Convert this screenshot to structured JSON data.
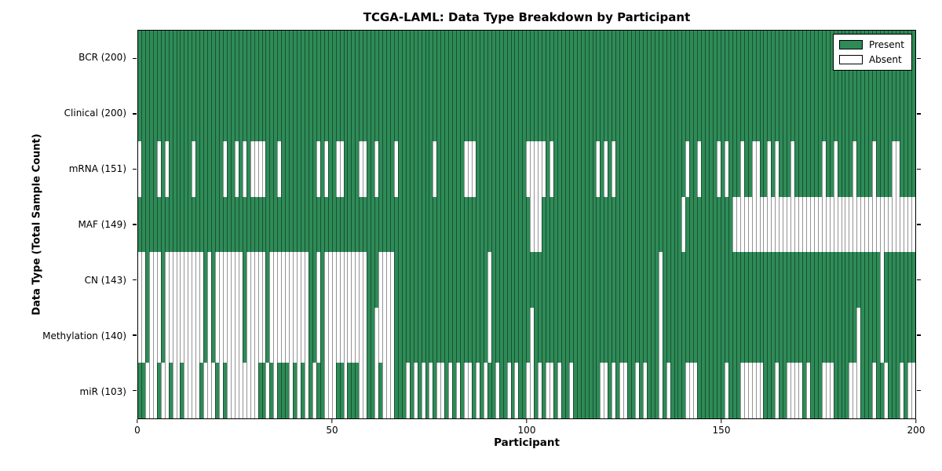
{
  "chart_data": {
    "type": "heatmap",
    "title": "TCGA-LAML: Data Type Breakdown by Participant",
    "xlabel": "Participant",
    "ylabel": "Data Type (Total Sample Count)",
    "x_ticks": [
      0,
      50,
      100,
      150,
      200
    ],
    "x_range": [
      0,
      200
    ],
    "n_participants": 200,
    "grid": false,
    "colors": {
      "present": "#2e8b57",
      "absent": "#ffffff",
      "cell_edge": "rgba(0,0,0,0.42)",
      "row_divider": "rgba(0,0,0,0.6)"
    },
    "legend": {
      "position": "upper-right",
      "items": [
        {
          "label": "Present",
          "color": "#2e8b57"
        },
        {
          "label": "Absent",
          "color": "#ffffff"
        }
      ]
    },
    "rows": [
      {
        "name": "bcr",
        "label": "BCR (200)",
        "present_count": 200,
        "absent_participants": []
      },
      {
        "name": "clinical",
        "label": "Clinical (200)",
        "present_count": 200,
        "absent_participants": []
      },
      {
        "name": "mrna",
        "label": "mRNA (151)",
        "present_count": 151,
        "absent_participants": [
          0,
          5,
          7,
          14,
          22,
          25,
          27,
          29,
          30,
          31,
          32,
          36,
          46,
          48,
          51,
          52,
          57,
          58,
          61,
          66,
          76,
          84,
          85,
          86,
          100,
          101,
          102,
          103,
          104,
          106,
          118,
          120,
          122,
          141,
          144,
          149,
          151,
          155,
          158,
          159,
          162,
          164,
          168,
          176,
          179,
          184,
          189,
          194,
          195
        ]
      },
      {
        "name": "maf",
        "label": "MAF (149)",
        "present_count": 149,
        "absent_participants": [
          101,
          102,
          103,
          140,
          153,
          154,
          155,
          156,
          157,
          158,
          159,
          160,
          161,
          162,
          163,
          164,
          165,
          166,
          167,
          168,
          169,
          170,
          171,
          172,
          173,
          174,
          175,
          176,
          177,
          178,
          179,
          180,
          181,
          182,
          183,
          184,
          185,
          186,
          187,
          188,
          189,
          190,
          191,
          192,
          193,
          194,
          195,
          196,
          197,
          198,
          199
        ]
      },
      {
        "name": "cn",
        "label": "CN (143)",
        "present_count": 143,
        "absent_participants": [
          0,
          1,
          3,
          4,
          5,
          7,
          8,
          9,
          10,
          11,
          12,
          13,
          14,
          15,
          16,
          18,
          20,
          21,
          22,
          23,
          24,
          25,
          26,
          28,
          29,
          30,
          31,
          32,
          34,
          35,
          36,
          37,
          38,
          39,
          40,
          41,
          42,
          43,
          46,
          48,
          49,
          50,
          51,
          52,
          53,
          54,
          55,
          56,
          57,
          58,
          62,
          63,
          64,
          65,
          90,
          134,
          191
        ]
      },
      {
        "name": "methylation",
        "label": "Methylation (140)",
        "present_count": 140,
        "absent_participants": [
          0,
          1,
          3,
          4,
          5,
          7,
          8,
          9,
          10,
          11,
          12,
          13,
          14,
          15,
          16,
          18,
          20,
          21,
          22,
          23,
          24,
          25,
          26,
          28,
          29,
          30,
          31,
          32,
          34,
          35,
          36,
          37,
          38,
          39,
          40,
          41,
          42,
          43,
          46,
          48,
          49,
          50,
          51,
          52,
          53,
          54,
          55,
          56,
          57,
          58,
          61,
          62,
          63,
          64,
          65,
          90,
          101,
          134,
          185,
          191
        ]
      },
      {
        "name": "mir",
        "label": "miR (103)",
        "present_count": 103,
        "absent_participants": [
          2,
          3,
          4,
          6,
          7,
          9,
          10,
          12,
          13,
          14,
          15,
          17,
          18,
          19,
          21,
          23,
          24,
          25,
          26,
          27,
          28,
          29,
          30,
          33,
          35,
          39,
          41,
          43,
          45,
          48,
          49,
          50,
          53,
          57,
          58,
          61,
          63,
          64,
          65,
          69,
          71,
          73,
          75,
          77,
          78,
          80,
          82,
          84,
          85,
          87,
          89,
          92,
          95,
          97,
          100,
          101,
          103,
          105,
          106,
          108,
          111,
          119,
          120,
          122,
          124,
          125,
          128,
          130,
          134,
          136,
          141,
          142,
          143,
          151,
          155,
          156,
          157,
          158,
          159,
          160,
          164,
          167,
          168,
          169,
          170,
          172,
          176,
          177,
          178,
          183,
          184,
          185,
          189,
          192,
          196,
          198,
          199
        ]
      }
    ]
  }
}
